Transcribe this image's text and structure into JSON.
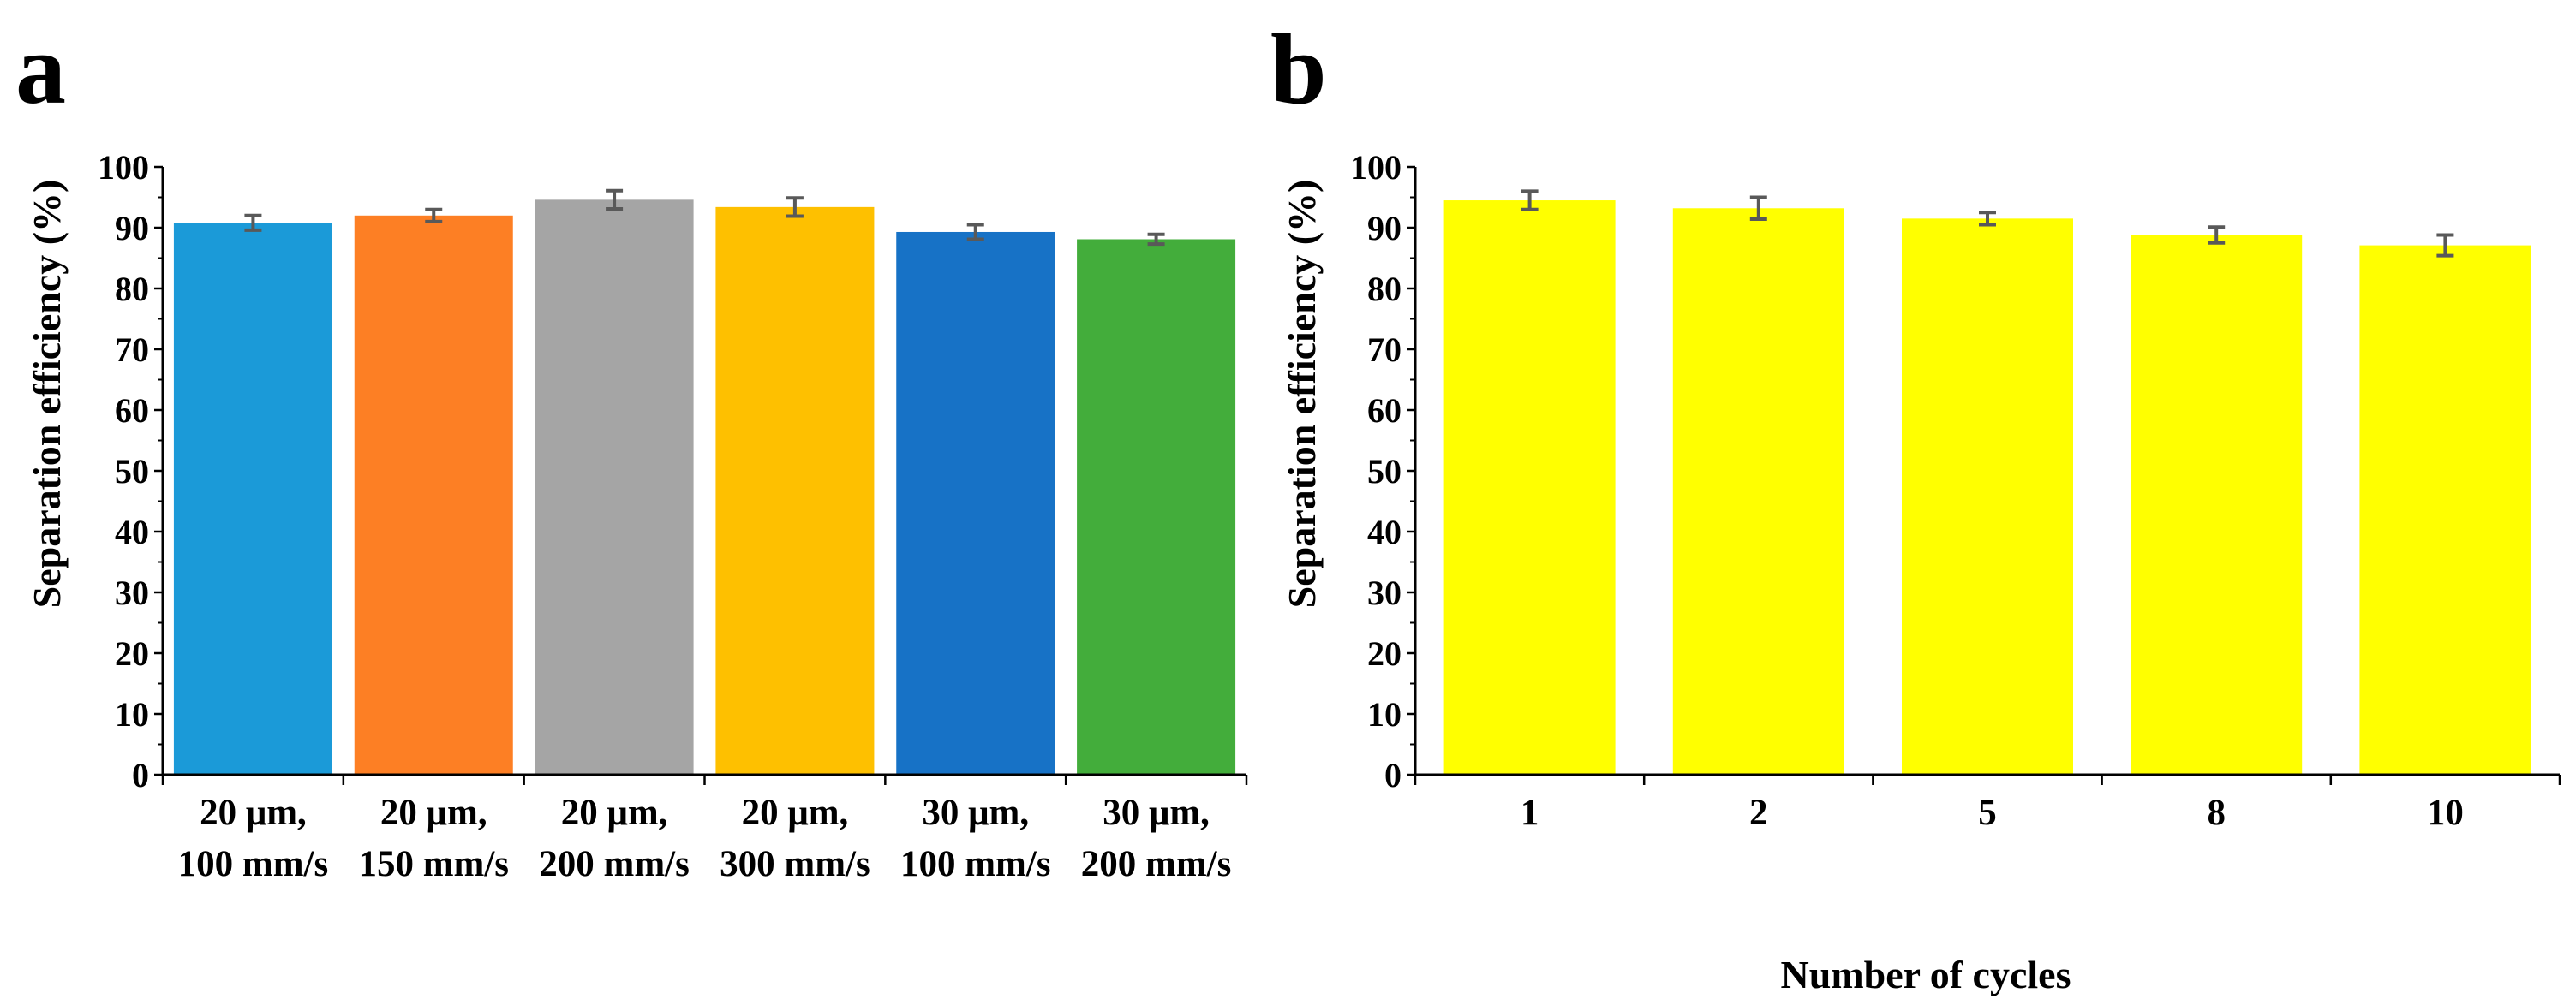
{
  "chart_data": [
    {
      "panel_label": "a",
      "type": "bar",
      "ylabel": "Separation efficiency (%)",
      "xlabel": "",
      "ylim": [
        0,
        100
      ],
      "yticks": [
        "0",
        "10",
        "20",
        "30",
        "40",
        "50",
        "60",
        "70",
        "80",
        "90",
        "100"
      ],
      "categories": [
        {
          "line1": "20 μm,",
          "line2": "100 mm/s"
        },
        {
          "line1": "20 μm,",
          "line2": "150 mm/s"
        },
        {
          "line1": "20 μm,",
          "line2": "200 mm/s"
        },
        {
          "line1": "20 μm,",
          "line2": "300 mm/s"
        },
        {
          "line1": "30 μm,",
          "line2": "100 mm/s"
        },
        {
          "line1": "30 μm,",
          "line2": "200 mm/s"
        }
      ],
      "values": [
        90.8,
        92.0,
        94.6,
        93.4,
        89.3,
        88.1
      ],
      "errors": [
        1.2,
        1.0,
        1.5,
        1.5,
        1.2,
        0.8
      ],
      "colors": [
        "#1b9ad8",
        "#fd7f24",
        "#a5a5a5",
        "#fec000",
        "#1772c6",
        "#43ad3b"
      ],
      "legend": "none"
    },
    {
      "panel_label": "b",
      "type": "bar",
      "ylabel": "Separation efficiency (%)",
      "xlabel": "Number of cycles",
      "ylim": [
        0,
        100
      ],
      "yticks": [
        "0",
        "10",
        "20",
        "30",
        "40",
        "50",
        "60",
        "70",
        "80",
        "90",
        "100"
      ],
      "categories": [
        {
          "line1": "1",
          "line2": ""
        },
        {
          "line1": "2",
          "line2": ""
        },
        {
          "line1": "5",
          "line2": ""
        },
        {
          "line1": "8",
          "line2": ""
        },
        {
          "line1": "10",
          "line2": ""
        }
      ],
      "values": [
        94.5,
        93.2,
        91.5,
        88.8,
        87.1
      ],
      "errors": [
        1.5,
        1.8,
        1.0,
        1.3,
        1.7
      ],
      "colors": [
        "#ffff00",
        "#ffff00",
        "#ffff00",
        "#ffff00",
        "#ffff00"
      ],
      "legend": "none"
    }
  ],
  "colors": {
    "error_bar": "#595959",
    "axis": "#000000"
  }
}
